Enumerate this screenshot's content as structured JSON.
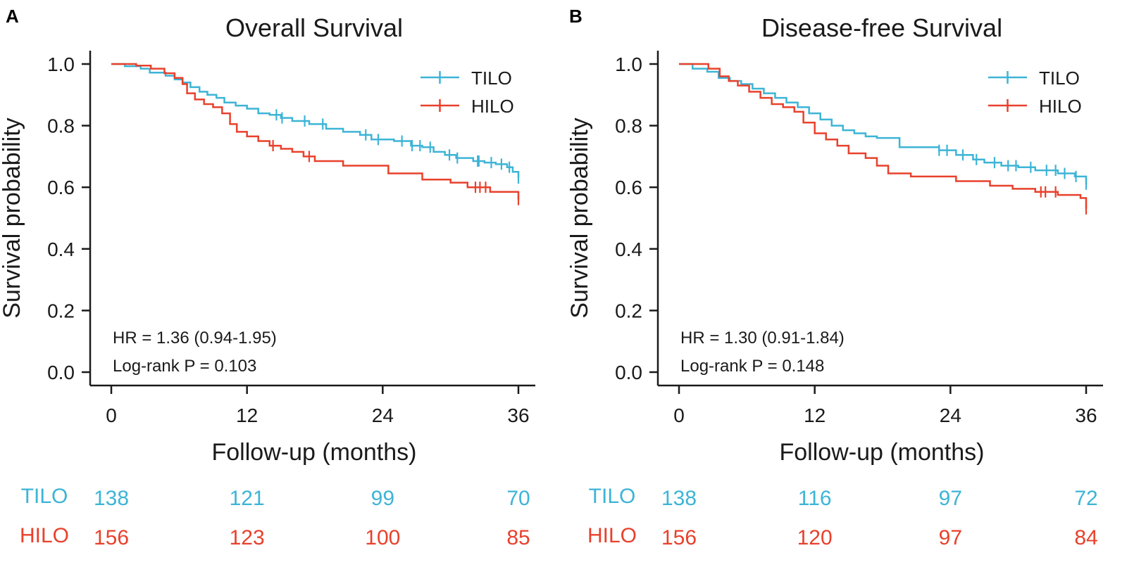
{
  "colors": {
    "tilo": "#3db4d6",
    "hilo": "#e8412c",
    "axis": "#1a1a1a",
    "text": "#1a1a1a"
  },
  "chart_data": [
    {
      "panel_label": "A",
      "type": "line",
      "title": "Overall Survival",
      "xlabel": "Follow-up (months)",
      "ylabel": "Survival probability",
      "xlim": [
        0,
        36
      ],
      "ylim": [
        0,
        1
      ],
      "xticks": [
        "0",
        "12",
        "24",
        "36"
      ],
      "yticks": [
        "0.0",
        "0.2",
        "0.4",
        "0.6",
        "0.8",
        "1.0"
      ],
      "legend": "top-right",
      "annotations": {
        "hr": "HR = 1.36 (0.94-1.95)",
        "p": "Log-rank P = 0.103"
      },
      "risk_table": {
        "TILO": [
          "138",
          "121",
          "99",
          "70"
        ],
        "HILO": [
          "156",
          "123",
          "100",
          "85"
        ]
      },
      "series": [
        {
          "name": "TILO",
          "color_key": "tilo",
          "x": [
            0,
            1.2,
            2.6,
            3.4,
            4.8,
            5.6,
            6.3,
            7.0,
            7.8,
            8.5,
            9.3,
            10.0,
            11.0,
            12.0,
            13.0,
            14.0,
            15.0,
            16.0,
            17.5,
            19.0,
            20.5,
            22.0,
            23.0,
            25.0,
            26.5,
            27.5,
            28.5,
            29.5,
            30.5,
            32.0,
            33.0,
            34.0,
            35.0,
            35.5,
            36.0
          ],
          "y": [
            1.0,
            0.993,
            0.985,
            0.972,
            0.962,
            0.95,
            0.94,
            0.925,
            0.91,
            0.9,
            0.89,
            0.875,
            0.865,
            0.855,
            0.84,
            0.835,
            0.825,
            0.815,
            0.805,
            0.79,
            0.78,
            0.77,
            0.755,
            0.75,
            0.735,
            0.73,
            0.715,
            0.705,
            0.695,
            0.685,
            0.68,
            0.675,
            0.665,
            0.65,
            0.63
          ],
          "censor": [
            14.6,
            15.1,
            17.1,
            18.7,
            22.5,
            23.6,
            25.7,
            26.6,
            27.3,
            28.2,
            29.9,
            30.6,
            32.4,
            32.5,
            33.6,
            34.5,
            35.2,
            36.0
          ]
        },
        {
          "name": "HILO",
          "color_key": "hilo",
          "x": [
            0,
            2.2,
            3.5,
            4.7,
            5.6,
            6.3,
            6.7,
            7.4,
            8.2,
            9.0,
            9.8,
            10.5,
            11.1,
            12.0,
            13.0,
            14.0,
            15.0,
            16.0,
            17.0,
            18.0,
            20.5,
            24.5,
            27.5,
            30.0,
            31.5,
            33.5,
            36.0
          ],
          "y": [
            1.0,
            0.995,
            0.985,
            0.97,
            0.955,
            0.935,
            0.905,
            0.885,
            0.87,
            0.86,
            0.84,
            0.805,
            0.78,
            0.765,
            0.75,
            0.735,
            0.725,
            0.715,
            0.7,
            0.685,
            0.67,
            0.645,
            0.625,
            0.615,
            0.6,
            0.585,
            0.56
          ],
          "censor": [
            14.3,
            17.5,
            32.2,
            32.6,
            33.1,
            36.0
          ]
        }
      ]
    },
    {
      "panel_label": "B",
      "type": "line",
      "title": "Disease-free Survival",
      "xlabel": "Follow-up (months)",
      "ylabel": "Survival probability",
      "xlim": [
        0,
        36
      ],
      "ylim": [
        0,
        1
      ],
      "xticks": [
        "0",
        "12",
        "24",
        "36"
      ],
      "yticks": [
        "0.0",
        "0.2",
        "0.4",
        "0.6",
        "0.8",
        "1.0"
      ],
      "legend": "top-right",
      "annotations": {
        "hr": "HR = 1.30 (0.91-1.84)",
        "p": "Log-rank P = 0.148"
      },
      "risk_table": {
        "TILO": [
          "138",
          "116",
          "97",
          "72"
        ],
        "HILO": [
          "156",
          "120",
          "97",
          "84"
        ]
      },
      "series": [
        {
          "name": "TILO",
          "color_key": "tilo",
          "x": [
            0,
            1.2,
            2.5,
            3.5,
            4.5,
            5.5,
            6.5,
            7.5,
            8.5,
            9.5,
            10.5,
            11.5,
            12.5,
            13.5,
            14.5,
            15.5,
            16.5,
            17.5,
            19.5,
            23.0,
            24.5,
            26.0,
            27.0,
            28.5,
            30.0,
            31.5,
            33.5,
            35.0,
            36.0
          ],
          "y": [
            1.0,
            0.985,
            0.975,
            0.955,
            0.945,
            0.935,
            0.92,
            0.905,
            0.89,
            0.875,
            0.86,
            0.84,
            0.82,
            0.8,
            0.785,
            0.775,
            0.765,
            0.76,
            0.73,
            0.72,
            0.705,
            0.69,
            0.68,
            0.67,
            0.665,
            0.655,
            0.645,
            0.635,
            0.61
          ],
          "censor": [
            23.0,
            23.7,
            25.1,
            26.3,
            27.9,
            29.1,
            29.8,
            31.1,
            32.5,
            33.3,
            34.1,
            35.1,
            36.0
          ]
        },
        {
          "name": "HILO",
          "color_key": "hilo",
          "x": [
            0,
            2.6,
            3.6,
            4.4,
            5.2,
            6.2,
            7.2,
            8.2,
            9.2,
            10.2,
            11.0,
            12.0,
            13.0,
            14.0,
            15.0,
            16.5,
            17.5,
            18.5,
            20.5,
            24.5,
            27.5,
            29.5,
            31.5,
            33.5,
            35.5,
            36.0
          ],
          "y": [
            1.0,
            0.985,
            0.96,
            0.945,
            0.93,
            0.91,
            0.89,
            0.87,
            0.86,
            0.845,
            0.81,
            0.775,
            0.755,
            0.735,
            0.71,
            0.695,
            0.67,
            0.645,
            0.635,
            0.62,
            0.605,
            0.595,
            0.585,
            0.575,
            0.565,
            0.53
          ],
          "censor": [
            32.0,
            32.4,
            33.3,
            36.0
          ]
        }
      ]
    }
  ]
}
